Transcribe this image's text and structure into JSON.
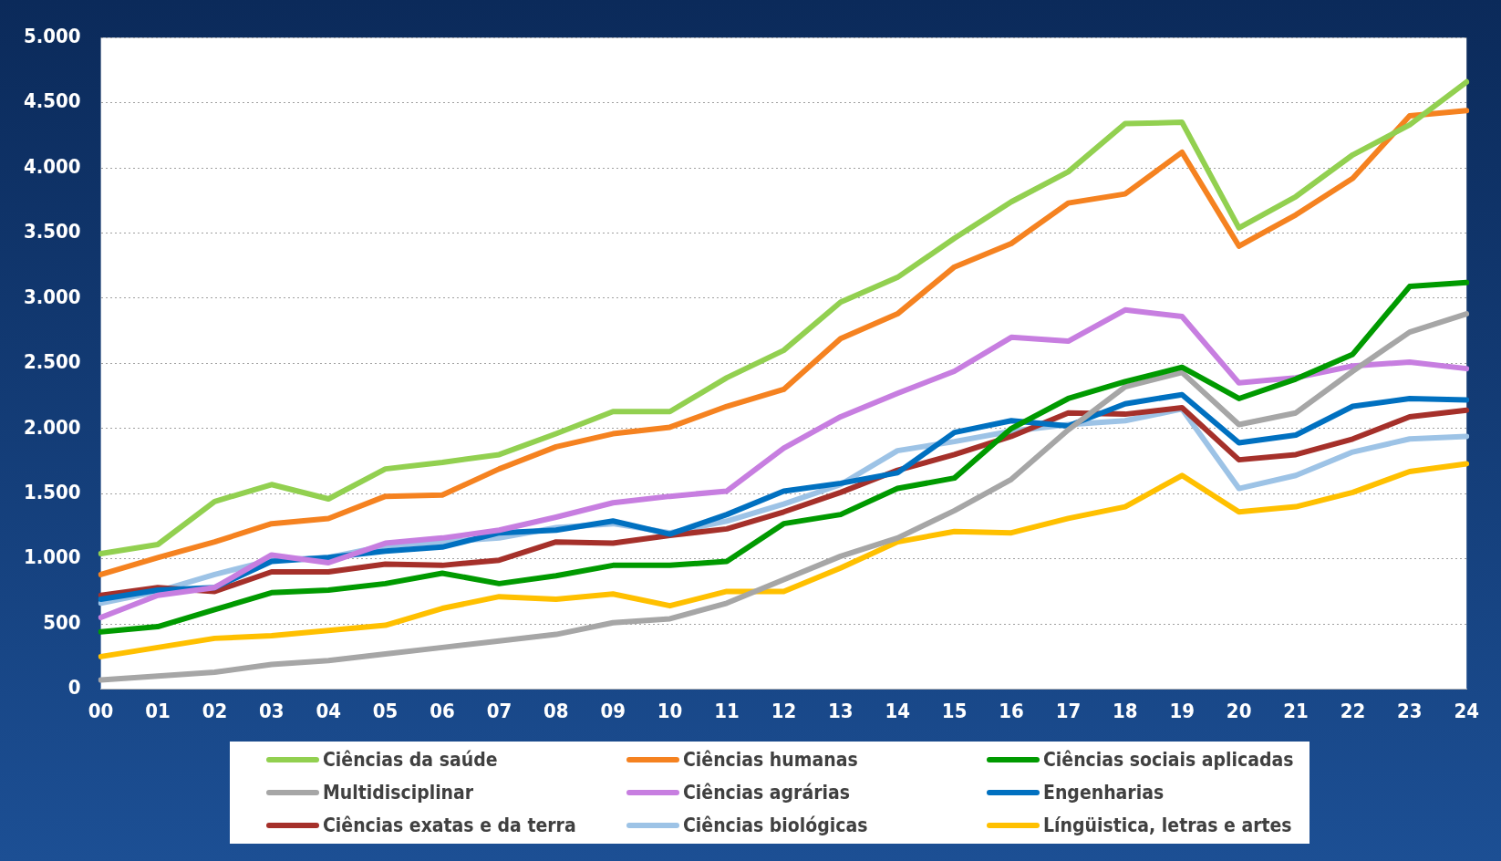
{
  "chart_data": {
    "type": "line",
    "categories": [
      "00",
      "01",
      "02",
      "03",
      "04",
      "05",
      "06",
      "07",
      "08",
      "09",
      "10",
      "11",
      "12",
      "13",
      "14",
      "15",
      "16",
      "17",
      "18",
      "19",
      "20",
      "21",
      "22",
      "23",
      "24"
    ],
    "ylim": [
      0,
      5000
    ],
    "yticks": [
      {
        "value": 0,
        "label": "0"
      },
      {
        "value": 500,
        "label": "500"
      },
      {
        "value": 1000,
        "label": "1.000"
      },
      {
        "value": 1500,
        "label": "1.500"
      },
      {
        "value": 2000,
        "label": "2.000"
      },
      {
        "value": 2500,
        "label": "2.500"
      },
      {
        "value": 3000,
        "label": "3.000"
      },
      {
        "value": 3500,
        "label": "3.500"
      },
      {
        "value": 4000,
        "label": "4.000"
      },
      {
        "value": 4500,
        "label": "4.500"
      },
      {
        "value": 5000,
        "label": "5.000"
      }
    ],
    "grid": "y",
    "legend": "bottom",
    "marker": "none",
    "line_style": "solid",
    "series": [
      {
        "name": "Ciências da saúde",
        "color": "#92d050",
        "values": [
          1040,
          1110,
          1440,
          1570,
          1460,
          1690,
          1740,
          1800,
          1960,
          2130,
          2130,
          2390,
          2600,
          2970,
          3160,
          3460,
          3740,
          3970,
          4340,
          4350,
          3540,
          3780,
          4100,
          4330,
          4660
        ]
      },
      {
        "name": "Ciências humanas",
        "color": "#f58220",
        "values": [
          880,
          1010,
          1130,
          1270,
          1310,
          1480,
          1490,
          1690,
          1860,
          1960,
          2010,
          2170,
          2300,
          2690,
          2880,
          3240,
          3420,
          3730,
          3800,
          4120,
          3400,
          3640,
          3920,
          4400,
          4440
        ]
      },
      {
        "name": "Ciências sociais aplicadas",
        "color": "#009a00",
        "values": [
          440,
          480,
          610,
          740,
          760,
          810,
          890,
          810,
          870,
          950,
          950,
          980,
          1270,
          1340,
          1540,
          1620,
          2000,
          2230,
          2360,
          2470,
          2230,
          2380,
          2570,
          3090,
          3120
        ]
      },
      {
        "name": "Multidisciplinar",
        "color": "#a6a6a6",
        "values": [
          70,
          100,
          130,
          190,
          220,
          270,
          320,
          370,
          420,
          510,
          540,
          660,
          840,
          1020,
          1160,
          1370,
          1610,
          1990,
          2320,
          2430,
          2030,
          2120,
          2440,
          2740,
          2880
        ]
      },
      {
        "name": "Ciências agrárias",
        "color": "#c77ee0",
        "values": [
          550,
          720,
          780,
          1030,
          970,
          1120,
          1160,
          1220,
          1320,
          1430,
          1480,
          1520,
          1850,
          2090,
          2270,
          2440,
          2700,
          2670,
          2910,
          2860,
          2350,
          2390,
          2480,
          2510,
          2460
        ]
      },
      {
        "name": "Engenharias",
        "color": "#0070c0",
        "values": [
          690,
          760,
          780,
          980,
          1010,
          1060,
          1090,
          1200,
          1220,
          1290,
          1190,
          1340,
          1520,
          1580,
          1660,
          1970,
          2060,
          2020,
          2190,
          2260,
          1890,
          1950,
          2170,
          2230,
          2220
        ]
      },
      {
        "name": "Ciências exatas e da terra",
        "color": "#a5302a",
        "values": [
          720,
          780,
          750,
          900,
          900,
          960,
          950,
          990,
          1130,
          1120,
          1180,
          1230,
          1360,
          1510,
          1680,
          1800,
          1940,
          2120,
          2110,
          2160,
          1760,
          1800,
          1920,
          2090,
          2140
        ]
      },
      {
        "name": "Ciências biológicas",
        "color": "#9dc3e6",
        "values": [
          660,
          750,
          880,
          990,
          1010,
          1100,
          1130,
          1160,
          1240,
          1270,
          1200,
          1290,
          1420,
          1570,
          1830,
          1900,
          1980,
          2030,
          2060,
          2150,
          1540,
          1640,
          1820,
          1920,
          1940
        ]
      },
      {
        "name": "Língüistica, letras e artes",
        "color": "#ffc000",
        "values": [
          250,
          320,
          390,
          410,
          450,
          490,
          620,
          710,
          690,
          730,
          640,
          750,
          750,
          930,
          1130,
          1210,
          1200,
          1310,
          1400,
          1640,
          1360,
          1400,
          1510,
          1670,
          1730
        ]
      }
    ]
  }
}
